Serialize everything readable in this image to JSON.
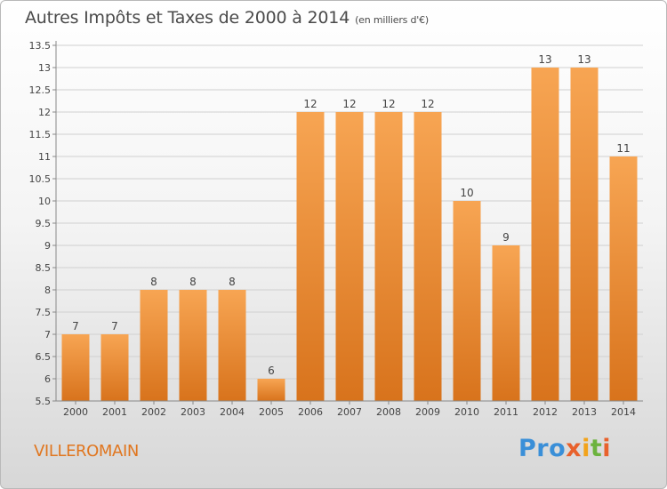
{
  "title": "Autres Impôts et Taxes de 2000 à 2014",
  "title_unit": "(en milliers d'€)",
  "commune": "VILLEROMAIN",
  "logo": {
    "text": "Proxiti",
    "parts": [
      "Pro",
      "x",
      "i",
      "t",
      "i"
    ]
  },
  "colors": {
    "bar_top": "#f7a553",
    "bar_bottom": "#d8731c",
    "accent": "#e0761f",
    "grid": "#d0d0d0"
  },
  "chart_data": {
    "type": "bar",
    "categories": [
      "2000",
      "2001",
      "2002",
      "2003",
      "2004",
      "2005",
      "2006",
      "2007",
      "2008",
      "2009",
      "2010",
      "2011",
      "2012",
      "2013",
      "2014"
    ],
    "values": [
      7,
      7,
      8,
      8,
      8,
      6,
      12,
      12,
      12,
      12,
      10,
      9,
      13,
      13,
      11
    ],
    "labels": [
      "7",
      "7",
      "8",
      "8",
      "8",
      "6",
      "12",
      "12",
      "12",
      "12",
      "10",
      "9",
      "13",
      "13",
      "11"
    ],
    "ylim": [
      5.5,
      13.5
    ],
    "yticks": [
      "5.5",
      "6",
      "6.5",
      "7",
      "7.5",
      "8",
      "8.5",
      "9",
      "9.5",
      "10",
      "10.5",
      "11",
      "11.5",
      "12",
      "12.5",
      "13",
      "13.5"
    ],
    "grid": true,
    "legend": "none"
  }
}
